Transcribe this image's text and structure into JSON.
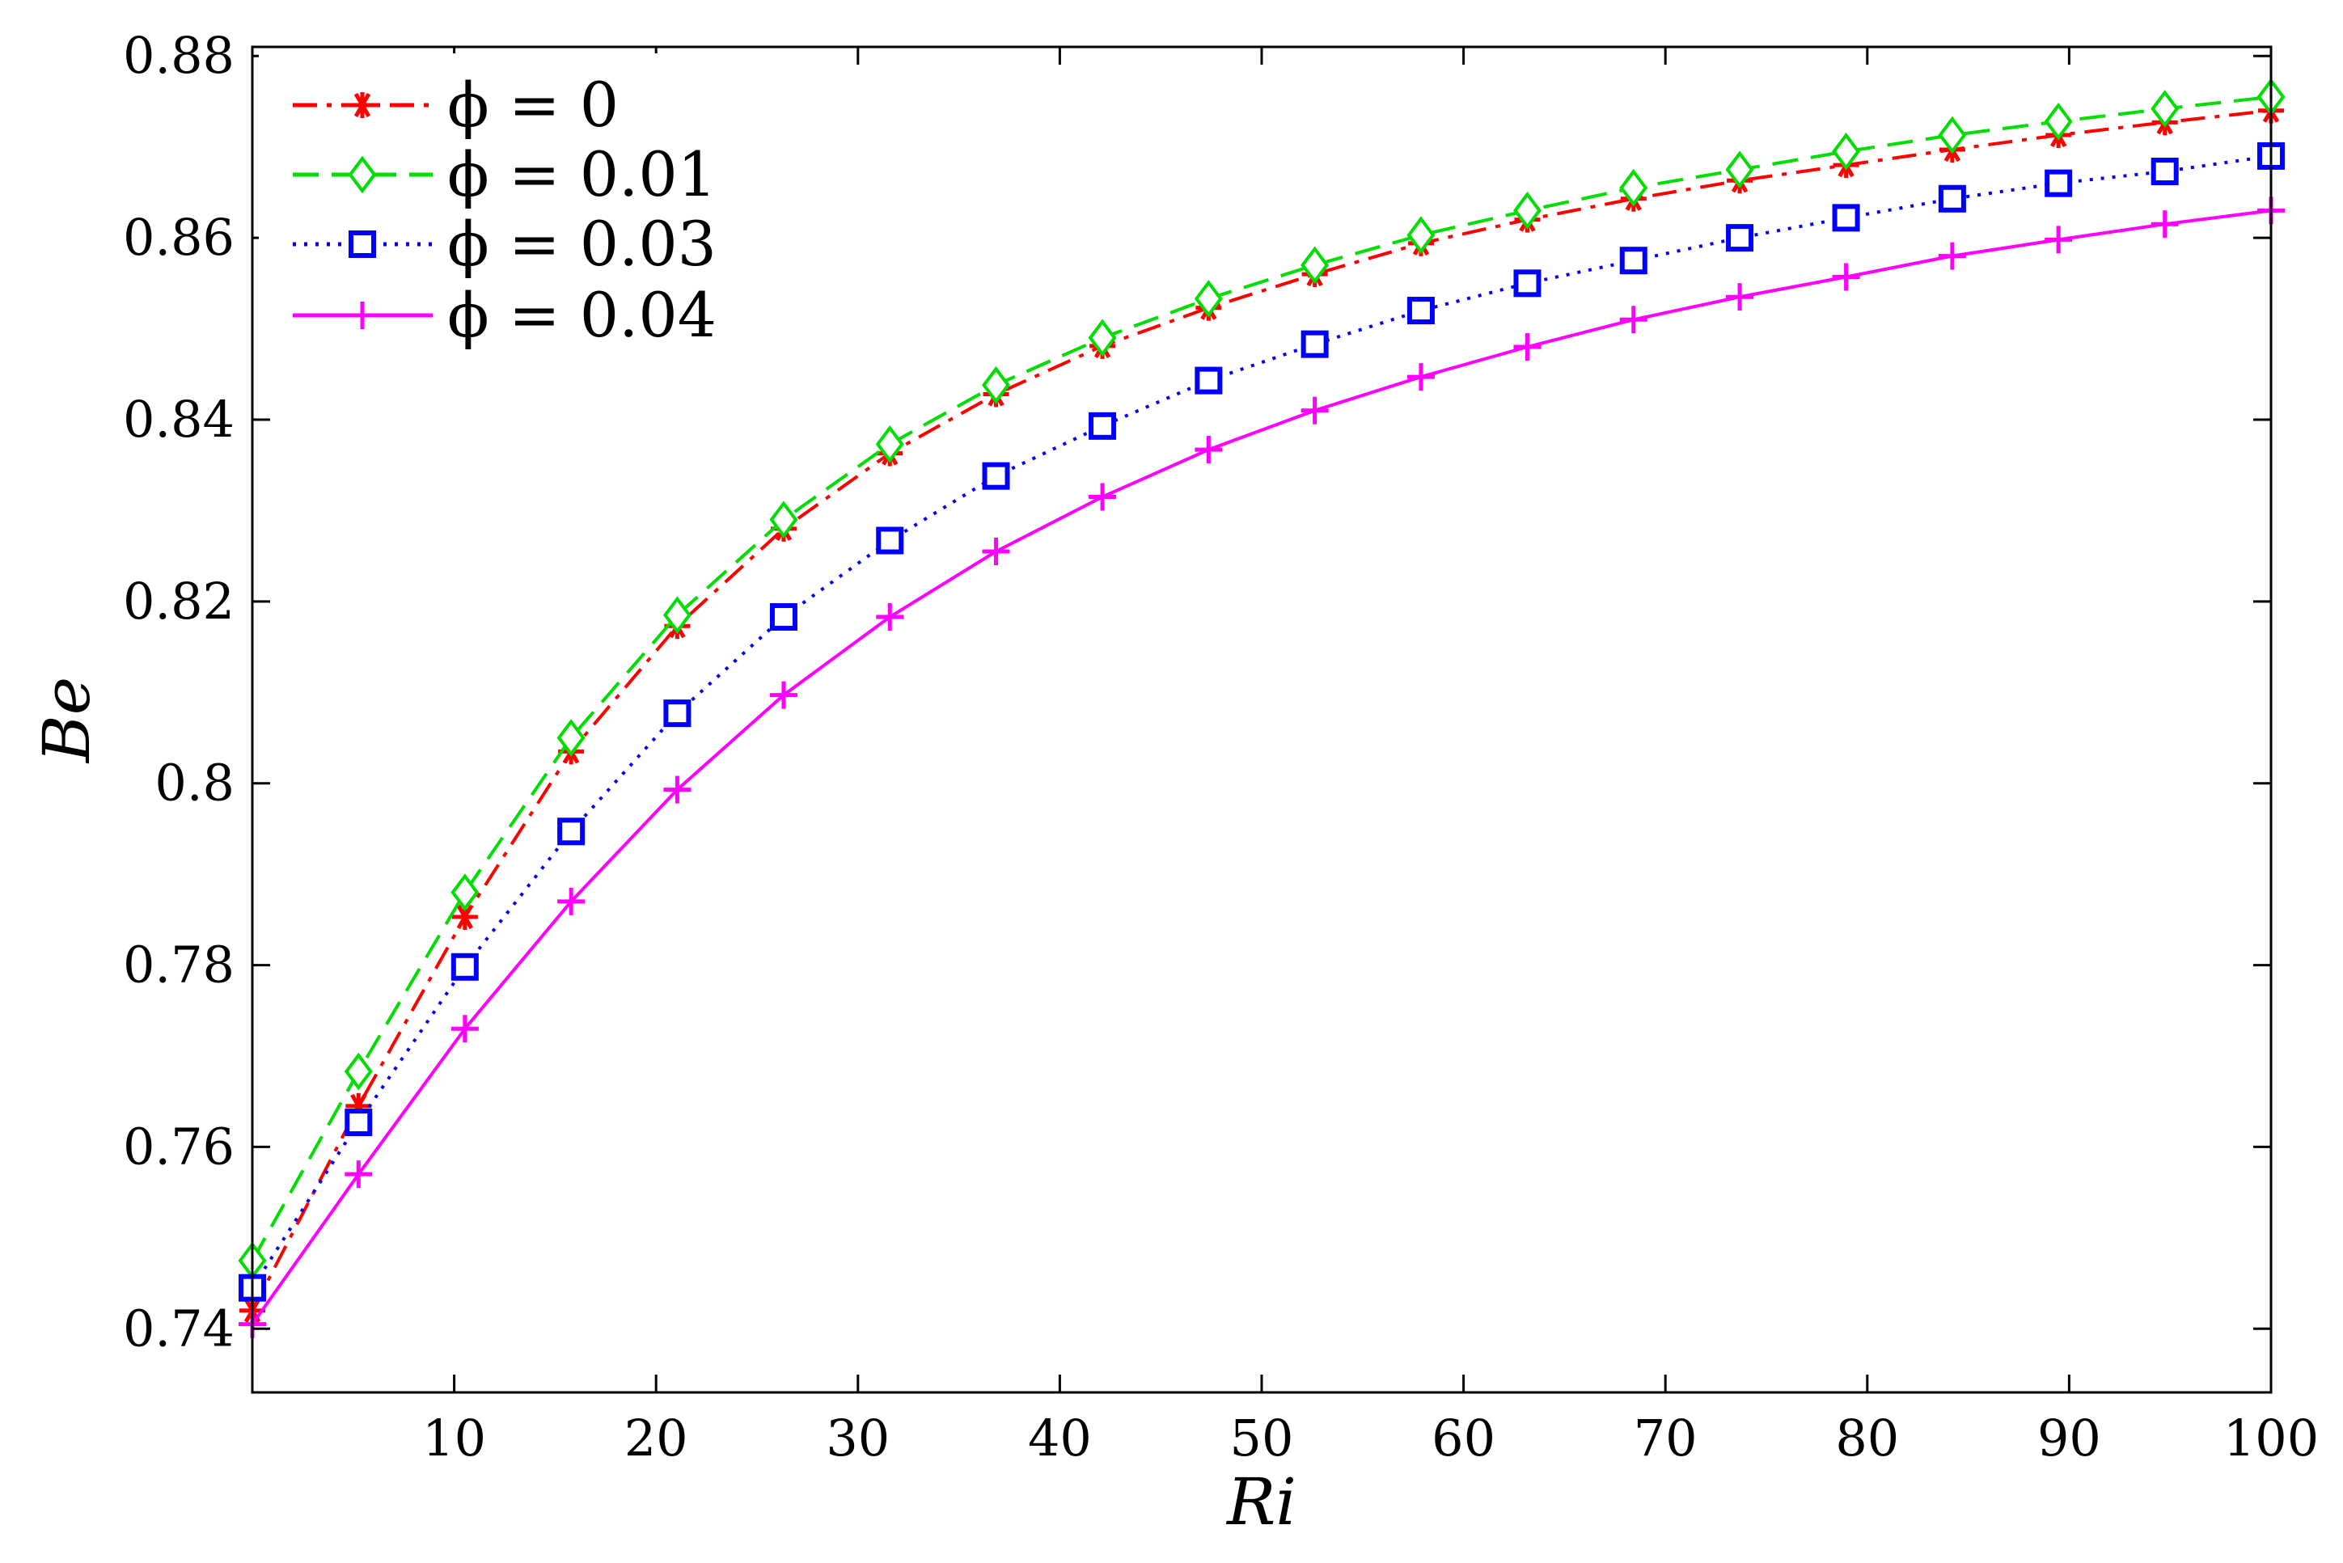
{
  "chart_data": {
    "type": "line",
    "xlabel": "Ri",
    "ylabel": "Be",
    "xlim": [
      0,
      100
    ],
    "ylim": [
      0.733,
      0.881
    ],
    "xticks": [
      10,
      20,
      30,
      40,
      50,
      60,
      70,
      80,
      90,
      100
    ],
    "xtick_labels": [
      "10",
      "20",
      "30",
      "40",
      "50",
      "60",
      "70",
      "80",
      "90",
      "100"
    ],
    "yticks": [
      0.74,
      0.76,
      0.78,
      0.8,
      0.82,
      0.84,
      0.86,
      0.88
    ],
    "ytick_labels": [
      "0.74",
      "0.76",
      "0.78",
      "0.8",
      "0.82",
      "0.84",
      "0.86",
      "0.88"
    ],
    "grid": false,
    "legend_position": "top-left",
    "x": [
      0,
      5.26,
      10.53,
      15.79,
      21.05,
      26.32,
      31.58,
      36.84,
      42.11,
      47.37,
      52.63,
      57.89,
      63.16,
      68.42,
      73.68,
      78.95,
      84.21,
      89.47,
      94.74,
      100
    ],
    "series": [
      {
        "name": "ϕ = 0",
        "color": "#ff0000",
        "line_style": "dash-dot",
        "marker": "asterisk",
        "values": [
          0.742,
          0.7645,
          0.7853,
          0.8035,
          0.8173,
          0.828,
          0.8363,
          0.8428,
          0.8481,
          0.8523,
          0.856,
          0.8594,
          0.862,
          0.8643,
          0.8663,
          0.868,
          0.8697,
          0.8713,
          0.8727,
          0.874
        ]
      },
      {
        "name": "ϕ = 0.01",
        "color": "#00dd00",
        "line_style": "dashed",
        "marker": "diamond",
        "values": [
          0.7475,
          0.7683,
          0.788,
          0.805,
          0.8185,
          0.829,
          0.8373,
          0.8438,
          0.849,
          0.8533,
          0.857,
          0.8603,
          0.863,
          0.8655,
          0.8675,
          0.8695,
          0.8713,
          0.8728,
          0.8742,
          0.8755
        ]
      },
      {
        "name": "ϕ = 0.03",
        "color": "#0000ff",
        "line_style": "dotted",
        "marker": "square",
        "values": [
          0.7445,
          0.7627,
          0.7798,
          0.7947,
          0.8077,
          0.8183,
          0.8267,
          0.8338,
          0.8393,
          0.8443,
          0.8483,
          0.852,
          0.855,
          0.8575,
          0.86,
          0.8622,
          0.8643,
          0.866,
          0.8673,
          0.869
        ]
      },
      {
        "name": "ϕ = 0.04",
        "color": "#ff00ff",
        "line_style": "solid",
        "marker": "plus",
        "values": [
          0.7405,
          0.757,
          0.773,
          0.787,
          0.7993,
          0.8097,
          0.8183,
          0.8255,
          0.8315,
          0.8367,
          0.841,
          0.8447,
          0.848,
          0.851,
          0.8535,
          0.8557,
          0.858,
          0.8598,
          0.8615,
          0.863
        ]
      }
    ]
  }
}
